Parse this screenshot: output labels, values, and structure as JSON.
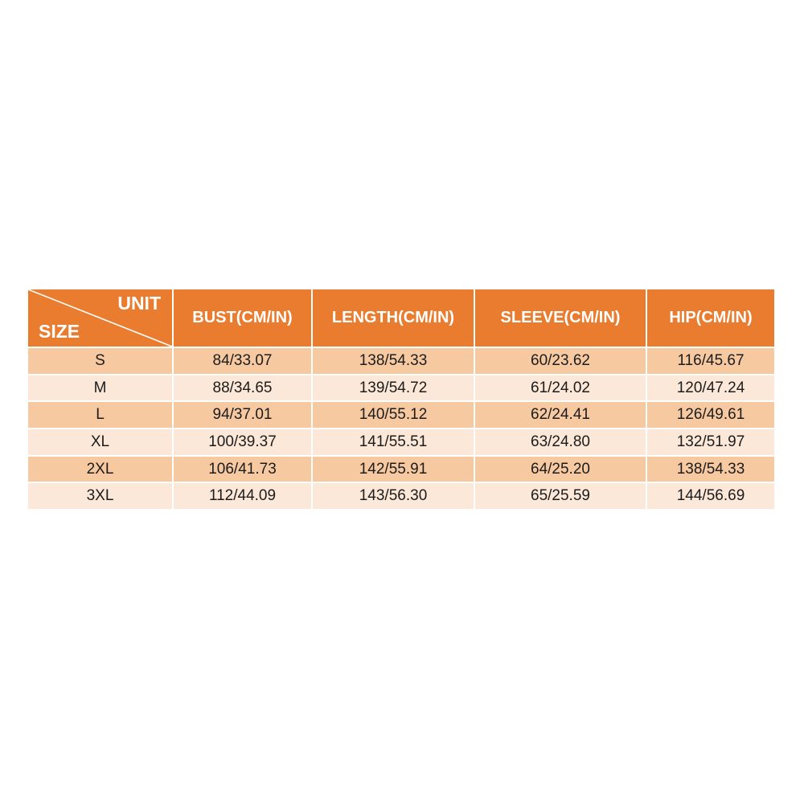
{
  "theme": {
    "page_background": "#ffffff",
    "header_background": "#e97c2f",
    "header_text": "#ffffff",
    "row_dark": "#f7c9a1",
    "row_light": "#fce8d8",
    "cell_text": "#1c1c1c",
    "divider": "#ffffff"
  },
  "size_chart": {
    "corner": {
      "top_label": "UNIT",
      "bottom_label": "SIZE"
    },
    "columns": [
      "BUST(CM/IN)",
      "LENGTH(CM/IN)",
      "SLEEVE(CM/IN)",
      "HIP(CM/IN)"
    ],
    "rows": [
      {
        "size": "S",
        "bust": "84/33.07",
        "length": "138/54.33",
        "sleeve": "60/23.62",
        "hip": "116/45.67"
      },
      {
        "size": "M",
        "bust": "88/34.65",
        "length": "139/54.72",
        "sleeve": "61/24.02",
        "hip": "120/47.24"
      },
      {
        "size": "L",
        "bust": "94/37.01",
        "length": "140/55.12",
        "sleeve": "62/24.41",
        "hip": "126/49.61"
      },
      {
        "size": "XL",
        "bust": "100/39.37",
        "length": "141/55.51",
        "sleeve": "63/24.80",
        "hip": "132/51.97"
      },
      {
        "size": "2XL",
        "bust": "106/41.73",
        "length": "142/55.91",
        "sleeve": "64/25.20",
        "hip": "138/54.33"
      },
      {
        "size": "3XL",
        "bust": "112/44.09",
        "length": "143/56.30",
        "sleeve": "65/25.59",
        "hip": "144/56.69"
      }
    ]
  }
}
